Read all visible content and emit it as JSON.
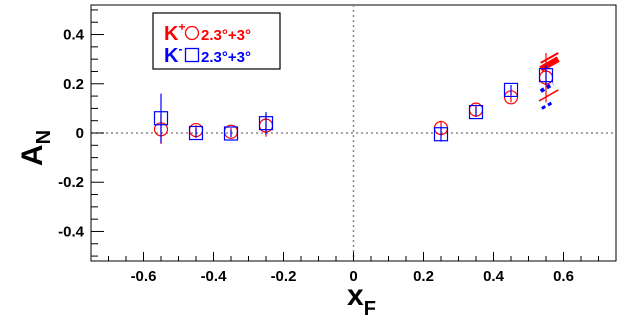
{
  "chart_data": {
    "type": "scatter",
    "xlabel": "x",
    "xlabel_sub": "F",
    "ylabel": "A",
    "ylabel_sub": "N",
    "xlim": [
      -0.75,
      0.75
    ],
    "ylim": [
      -0.52,
      0.52
    ],
    "grid": false,
    "reference_lines": [
      {
        "axis": "x",
        "value": 0
      },
      {
        "axis": "y",
        "value": 0
      }
    ],
    "x_ticks": [
      -0.6,
      -0.4,
      -0.2,
      0,
      0.2,
      0.4,
      0.6
    ],
    "x_tick_labels": [
      "-0.6",
      "-0.4",
      "-0.2",
      "0",
      "0.2",
      "0.4",
      "0.6"
    ],
    "y_ticks": [
      -0.4,
      -0.2,
      0,
      0.2,
      0.4
    ],
    "y_tick_labels": [
      "-0.4",
      "-0.2",
      "0",
      "0.2",
      "0.4"
    ],
    "legend": {
      "placement": "top-left",
      "entries": [
        {
          "particle": "K",
          "charge": "+",
          "label": "2.3°+3°",
          "color": "#ff0000",
          "marker": "circle"
        },
        {
          "particle": "K",
          "charge": "-",
          "label": "2.3°+3°",
          "color": "#0000ff",
          "marker": "square"
        }
      ]
    },
    "series": [
      {
        "marker": "circle",
        "color": "#ff0000",
        "points": [
          {
            "x": -0.55,
            "y": 0.015,
            "err": 0.06
          },
          {
            "x": -0.45,
            "y": 0.012,
            "err": 0.02
          },
          {
            "x": -0.35,
            "y": 0.005,
            "err": 0.015
          },
          {
            "x": -0.25,
            "y": 0.03,
            "err": 0.045
          },
          {
            "x": 0.25,
            "y": 0.02,
            "err": 0.03
          },
          {
            "x": 0.35,
            "y": 0.095,
            "err": 0.02
          },
          {
            "x": 0.45,
            "y": 0.145,
            "err": 0.02
          },
          {
            "x": 0.55,
            "y": 0.225,
            "err": 0.1
          }
        ]
      },
      {
        "marker": "square",
        "color": "#0000ff",
        "points": [
          {
            "x": -0.55,
            "y": 0.06,
            "err": 0.1
          },
          {
            "x": -0.45,
            "y": 0.0,
            "err": 0.02
          },
          {
            "x": -0.35,
            "y": -0.002,
            "err": 0.015
          },
          {
            "x": -0.25,
            "y": 0.04,
            "err": 0.045
          },
          {
            "x": 0.25,
            "y": -0.005,
            "err": 0.03
          },
          {
            "x": 0.35,
            "y": 0.085,
            "err": 0.02
          },
          {
            "x": 0.45,
            "y": 0.175,
            "err": 0.02
          },
          {
            "x": 0.55,
            "y": 0.235,
            "err": 0.04
          }
        ]
      }
    ],
    "annotations": [
      {
        "color": "#ff0000",
        "style": "solid",
        "width": 2,
        "x1": 0.535,
        "y1": 0.285,
        "x2": 0.585,
        "y2": 0.325
      },
      {
        "color": "#ff0000",
        "style": "solid",
        "width": 6,
        "x1": 0.535,
        "y1": 0.26,
        "x2": 0.585,
        "y2": 0.3
      },
      {
        "color": "#ff0000",
        "style": "solid",
        "width": 1.5,
        "x1": 0.53,
        "y1": 0.13,
        "x2": 0.585,
        "y2": 0.175
      },
      {
        "color": "#0000ff",
        "style": "dashed",
        "width": 4,
        "x1": 0.535,
        "y1": 0.17,
        "x2": 0.57,
        "y2": 0.2
      },
      {
        "color": "#0000ff",
        "style": "dashed",
        "width": 3,
        "x1": 0.538,
        "y1": 0.1,
        "x2": 0.57,
        "y2": 0.125
      }
    ]
  }
}
